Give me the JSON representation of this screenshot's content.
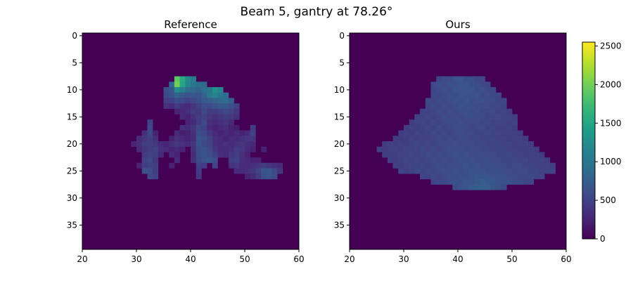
{
  "figure": {
    "title": "Beam  5, gantry at  78.26°"
  },
  "chart_data": [
    {
      "type": "heatmap",
      "title": "Reference",
      "xlim": [
        20,
        60
      ],
      "ylim": [
        40,
        0
      ],
      "xticks": [
        "20",
        "30",
        "40",
        "50",
        "60"
      ],
      "yticks": [
        "0",
        "5",
        "10",
        "15",
        "20",
        "25",
        "30",
        "35"
      ],
      "cell_unit": 1,
      "background": 0,
      "cells": [
        [
          37,
          8,
          1900
        ],
        [
          38,
          8,
          1550
        ],
        [
          39,
          8,
          1200
        ],
        [
          40,
          8,
          1050
        ],
        [
          36,
          9,
          850
        ],
        [
          37,
          9,
          2000
        ],
        [
          38,
          9,
          1500
        ],
        [
          39,
          9,
          1150
        ],
        [
          40,
          9,
          1000
        ],
        [
          41,
          9,
          900
        ],
        [
          42,
          9,
          850
        ],
        [
          35,
          10,
          600
        ],
        [
          36,
          10,
          700
        ],
        [
          37,
          10,
          1250
        ],
        [
          38,
          10,
          1100
        ],
        [
          39,
          10,
          900
        ],
        [
          40,
          10,
          850
        ],
        [
          41,
          10,
          800
        ],
        [
          42,
          10,
          900
        ],
        [
          43,
          10,
          1000
        ],
        [
          44,
          10,
          1300
        ],
        [
          45,
          10,
          1150
        ],
        [
          35,
          11,
          550
        ],
        [
          36,
          11,
          650
        ],
        [
          37,
          11,
          800
        ],
        [
          38,
          11,
          700
        ],
        [
          39,
          11,
          650
        ],
        [
          40,
          11,
          700
        ],
        [
          41,
          11,
          650
        ],
        [
          42,
          11,
          800
        ],
        [
          43,
          11,
          1050
        ],
        [
          44,
          11,
          1150
        ],
        [
          45,
          11,
          1000
        ],
        [
          46,
          11,
          900
        ],
        [
          35,
          12,
          450
        ],
        [
          36,
          12,
          500
        ],
        [
          37,
          12,
          600
        ],
        [
          38,
          12,
          550
        ],
        [
          39,
          12,
          500
        ],
        [
          40,
          12,
          550
        ],
        [
          41,
          12,
          600
        ],
        [
          42,
          12,
          700
        ],
        [
          43,
          12,
          750
        ],
        [
          44,
          12,
          800
        ],
        [
          45,
          12,
          850
        ],
        [
          46,
          12,
          900
        ],
        [
          47,
          12,
          750
        ],
        [
          35,
          13,
          350
        ],
        [
          36,
          13,
          300
        ],
        [
          37,
          13,
          450
        ],
        [
          38,
          13,
          350
        ],
        [
          39,
          13,
          300
        ],
        [
          40,
          13,
          400
        ],
        [
          41,
          13,
          500
        ],
        [
          42,
          13,
          600
        ],
        [
          43,
          13,
          550
        ],
        [
          44,
          13,
          650
        ],
        [
          45,
          13,
          700
        ],
        [
          46,
          13,
          700
        ],
        [
          47,
          13,
          600
        ],
        [
          48,
          13,
          500
        ],
        [
          37,
          14,
          250
        ],
        [
          38,
          14,
          300
        ],
        [
          39,
          14,
          350
        ],
        [
          40,
          14,
          450
        ],
        [
          41,
          14,
          400
        ],
        [
          42,
          14,
          550
        ],
        [
          43,
          14,
          450
        ],
        [
          44,
          14,
          450
        ],
        [
          45,
          14,
          500
        ],
        [
          46,
          14,
          550
        ],
        [
          47,
          14,
          500
        ],
        [
          48,
          14,
          400
        ],
        [
          38,
          15,
          300
        ],
        [
          39,
          15,
          250
        ],
        [
          40,
          15,
          350
        ],
        [
          41,
          15,
          450
        ],
        [
          42,
          15,
          500
        ],
        [
          43,
          15,
          400
        ],
        [
          44,
          15,
          350
        ],
        [
          45,
          15,
          400
        ],
        [
          46,
          15,
          450
        ],
        [
          47,
          15,
          400
        ],
        [
          48,
          15,
          350
        ],
        [
          32,
          16,
          500
        ],
        [
          39,
          16,
          250
        ],
        [
          40,
          16,
          300
        ],
        [
          41,
          16,
          450
        ],
        [
          42,
          16,
          550
        ],
        [
          43,
          16,
          350
        ],
        [
          44,
          16,
          300
        ],
        [
          45,
          16,
          350
        ],
        [
          46,
          16,
          400
        ],
        [
          47,
          16,
          300
        ],
        [
          32,
          17,
          550
        ],
        [
          38,
          17,
          350
        ],
        [
          39,
          17,
          300
        ],
        [
          40,
          17,
          400
        ],
        [
          41,
          17,
          550
        ],
        [
          42,
          17,
          500
        ],
        [
          43,
          17,
          300
        ],
        [
          44,
          17,
          250
        ],
        [
          45,
          17,
          300
        ],
        [
          46,
          17,
          350
        ],
        [
          47,
          17,
          250
        ],
        [
          48,
          17,
          200
        ],
        [
          51,
          17,
          450
        ],
        [
          31,
          18,
          350
        ],
        [
          32,
          18,
          550
        ],
        [
          33,
          18,
          250
        ],
        [
          37,
          18,
          300
        ],
        [
          38,
          18,
          200
        ],
        [
          39,
          18,
          250
        ],
        [
          40,
          18,
          350
        ],
        [
          41,
          18,
          600
        ],
        [
          42,
          18,
          550
        ],
        [
          43,
          18,
          400
        ],
        [
          44,
          18,
          300
        ],
        [
          45,
          18,
          250
        ],
        [
          46,
          18,
          300
        ],
        [
          47,
          18,
          250
        ],
        [
          48,
          18,
          300
        ],
        [
          49,
          18,
          250
        ],
        [
          50,
          18,
          300
        ],
        [
          51,
          18,
          500
        ],
        [
          30,
          19,
          300
        ],
        [
          31,
          19,
          400
        ],
        [
          32,
          19,
          500
        ],
        [
          33,
          19,
          350
        ],
        [
          36,
          19,
          250
        ],
        [
          37,
          19,
          350
        ],
        [
          38,
          19,
          300
        ],
        [
          39,
          19,
          250
        ],
        [
          40,
          19,
          300
        ],
        [
          41,
          19,
          650
        ],
        [
          42,
          19,
          600
        ],
        [
          43,
          19,
          500
        ],
        [
          44,
          19,
          350
        ],
        [
          45,
          19,
          300
        ],
        [
          46,
          19,
          250
        ],
        [
          47,
          19,
          300
        ],
        [
          48,
          19,
          300
        ],
        [
          49,
          19,
          350
        ],
        [
          50,
          19,
          400
        ],
        [
          51,
          19,
          400
        ],
        [
          29,
          20,
          250
        ],
        [
          30,
          20,
          350
        ],
        [
          31,
          20,
          450
        ],
        [
          32,
          20,
          450
        ],
        [
          33,
          20,
          400
        ],
        [
          34,
          20,
          300
        ],
        [
          35,
          20,
          250
        ],
        [
          36,
          20,
          350
        ],
        [
          37,
          20,
          400
        ],
        [
          38,
          20,
          350
        ],
        [
          39,
          20,
          300
        ],
        [
          40,
          20,
          400
        ],
        [
          41,
          20,
          650
        ],
        [
          42,
          20,
          550
        ],
        [
          43,
          20,
          500
        ],
        [
          44,
          20,
          350
        ],
        [
          45,
          20,
          300
        ],
        [
          46,
          20,
          350
        ],
        [
          47,
          20,
          300
        ],
        [
          48,
          20,
          350
        ],
        [
          49,
          20,
          400
        ],
        [
          50,
          20,
          350
        ],
        [
          51,
          20,
          300
        ],
        [
          30,
          21,
          300
        ],
        [
          31,
          21,
          400
        ],
        [
          32,
          21,
          450
        ],
        [
          33,
          21,
          500
        ],
        [
          34,
          21,
          350
        ],
        [
          35,
          21,
          300
        ],
        [
          36,
          21,
          250
        ],
        [
          37,
          21,
          300
        ],
        [
          38,
          21,
          250
        ],
        [
          40,
          21,
          350
        ],
        [
          41,
          21,
          600
        ],
        [
          42,
          21,
          650
        ],
        [
          43,
          21,
          550
        ],
        [
          44,
          21,
          400
        ],
        [
          45,
          21,
          300
        ],
        [
          46,
          21,
          300
        ],
        [
          47,
          21,
          350
        ],
        [
          48,
          21,
          450
        ],
        [
          49,
          21,
          400
        ],
        [
          50,
          21,
          300
        ],
        [
          51,
          21,
          250
        ],
        [
          53,
          21,
          250
        ],
        [
          31,
          22,
          450
        ],
        [
          32,
          22,
          500
        ],
        [
          33,
          22,
          450
        ],
        [
          34,
          22,
          300
        ],
        [
          36,
          22,
          300
        ],
        [
          37,
          22,
          250
        ],
        [
          40,
          22,
          300
        ],
        [
          41,
          22,
          600
        ],
        [
          42,
          22,
          650
        ],
        [
          43,
          22,
          600
        ],
        [
          44,
          22,
          500
        ],
        [
          45,
          22,
          350
        ],
        [
          46,
          22,
          300
        ],
        [
          47,
          22,
          400
        ],
        [
          48,
          22,
          450
        ],
        [
          49,
          22,
          350
        ],
        [
          50,
          22,
          250
        ],
        [
          31,
          23,
          500
        ],
        [
          32,
          23,
          550
        ],
        [
          33,
          23,
          400
        ],
        [
          37,
          23,
          300
        ],
        [
          40,
          23,
          350
        ],
        [
          41,
          23,
          550
        ],
        [
          42,
          23,
          650
        ],
        [
          43,
          23,
          700
        ],
        [
          44,
          23,
          600
        ],
        [
          47,
          23,
          450
        ],
        [
          48,
          23,
          500
        ],
        [
          49,
          23,
          350
        ],
        [
          50,
          23,
          300
        ],
        [
          51,
          23,
          250
        ],
        [
          52,
          23,
          250
        ],
        [
          30,
          24,
          250
        ],
        [
          31,
          24,
          450
        ],
        [
          32,
          24,
          500
        ],
        [
          33,
          24,
          450
        ],
        [
          36,
          24,
          250
        ],
        [
          41,
          24,
          500
        ],
        [
          42,
          24,
          450
        ],
        [
          44,
          24,
          500
        ],
        [
          47,
          24,
          350
        ],
        [
          48,
          24,
          400
        ],
        [
          49,
          24,
          300
        ],
        [
          50,
          24,
          300
        ],
        [
          51,
          24,
          350
        ],
        [
          52,
          24,
          400
        ],
        [
          53,
          24,
          450
        ],
        [
          54,
          24,
          400
        ],
        [
          55,
          24,
          350
        ],
        [
          56,
          24,
          300
        ],
        [
          31,
          25,
          650
        ],
        [
          32,
          25,
          600
        ],
        [
          33,
          25,
          450
        ],
        [
          41,
          25,
          450
        ],
        [
          48,
          25,
          300
        ],
        [
          49,
          25,
          300
        ],
        [
          50,
          25,
          350
        ],
        [
          51,
          25,
          400
        ],
        [
          52,
          25,
          500
        ],
        [
          53,
          25,
          650
        ],
        [
          54,
          25,
          700
        ],
        [
          55,
          25,
          550
        ],
        [
          56,
          25,
          400
        ],
        [
          32,
          26,
          550
        ],
        [
          33,
          26,
          500
        ],
        [
          41,
          26,
          400
        ],
        [
          50,
          26,
          250
        ],
        [
          51,
          26,
          300
        ],
        [
          52,
          26,
          450
        ],
        [
          53,
          26,
          600
        ],
        [
          54,
          26,
          650
        ],
        [
          55,
          26,
          550
        ]
      ]
    },
    {
      "type": "heatmap",
      "title": "Ours",
      "xlim": [
        20,
        60
      ],
      "ylim": [
        40,
        0
      ],
      "xticks": [
        "20",
        "30",
        "40",
        "50",
        "60"
      ],
      "yticks": [
        "0",
        "5",
        "10",
        "15",
        "20",
        "25",
        "30",
        "35"
      ],
      "cell_unit": 1,
      "background": 0,
      "fill_rows": [
        [
          8,
          36,
          44,
          520,
          620
        ],
        [
          9,
          35,
          45,
          520,
          640
        ],
        [
          10,
          35,
          46,
          530,
          650
        ],
        [
          11,
          35,
          47,
          520,
          630
        ],
        [
          12,
          34,
          48,
          510,
          620
        ],
        [
          13,
          34,
          48,
          500,
          600
        ],
        [
          14,
          33,
          49,
          480,
          580
        ],
        [
          15,
          32,
          50,
          470,
          570
        ],
        [
          16,
          31,
          50,
          460,
          560
        ],
        [
          17,
          30,
          50,
          450,
          560
        ],
        [
          18,
          29,
          51,
          440,
          550
        ],
        [
          19,
          28,
          52,
          430,
          550
        ],
        [
          20,
          26,
          53,
          430,
          560
        ],
        [
          21,
          25,
          54,
          430,
          570
        ],
        [
          22,
          26,
          55,
          440,
          580
        ],
        [
          23,
          27,
          56,
          450,
          590
        ],
        [
          24,
          28,
          57,
          460,
          600
        ],
        [
          25,
          29,
          57,
          470,
          620
        ],
        [
          26,
          33,
          55,
          480,
          650
        ],
        [
          27,
          35,
          53,
          500,
          700
        ],
        [
          28,
          39,
          48,
          550,
          780
        ]
      ]
    }
  ],
  "colorbar": {
    "min": 0,
    "max": 2550,
    "ticks": [
      "0",
      "500",
      "1000",
      "1500",
      "2000",
      "2500"
    ],
    "colormap": "viridis"
  }
}
